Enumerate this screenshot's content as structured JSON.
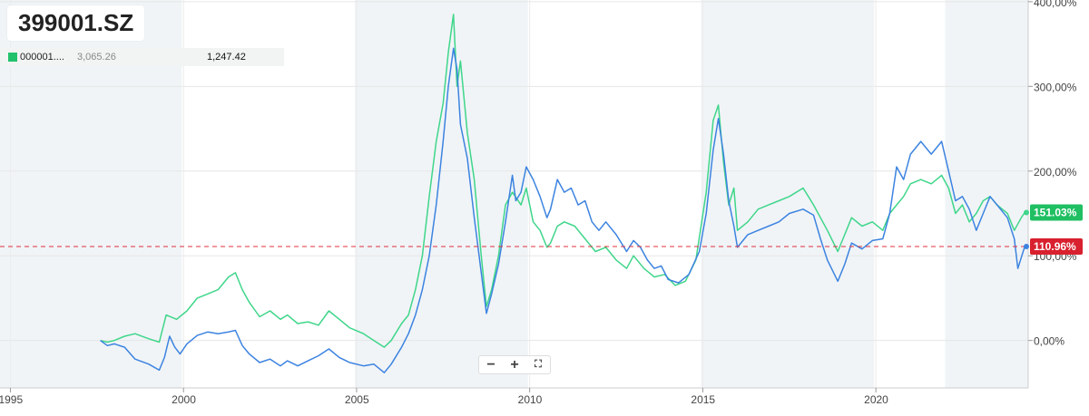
{
  "header": {
    "title": "399001.SZ"
  },
  "legend": {
    "name": "000001",
    "dots": "....",
    "value_1": "3,065.26",
    "value_2": "1,247.42",
    "color": "#22c16c"
  },
  "zoom_controls": {
    "minus": "−",
    "plus": "+",
    "fit": "⛶"
  },
  "colors": {
    "blue": "#3c83e0",
    "green": "#3fd68a",
    "dashed": "#e0313b",
    "band": "#f0f4f7"
  },
  "chart_data": {
    "type": "line",
    "x_axis": {
      "range": [
        1994.7,
        2024.4
      ],
      "ticks": [
        1995,
        2000,
        2005,
        2010,
        2015,
        2020
      ]
    },
    "y_axis": {
      "range": [
        -56,
        402
      ],
      "ticks": [
        0,
        100,
        200,
        300,
        400
      ],
      "tick_labels": [
        "0,00%",
        "100,00%",
        "200,00%",
        "300,00%",
        "400,00%"
      ]
    },
    "shaded_periods": [
      [
        1994.7,
        1999.95
      ],
      [
        2004.95,
        2009.95
      ],
      [
        2014.95,
        2019.95
      ],
      [
        2022.0,
        2024.4
      ]
    ],
    "reference_line": {
      "value": 110.96,
      "label": "110.96%"
    },
    "end_labels": [
      {
        "series": "green",
        "value": 151.03,
        "label": "151.03%"
      },
      {
        "series": "blue",
        "value": 110.96,
        "label": "110.96%"
      }
    ],
    "series": [
      {
        "key": "blue",
        "points": [
          [
            1997.6,
            0
          ],
          [
            1997.8,
            -6
          ],
          [
            1998.0,
            -4
          ],
          [
            1998.3,
            -8
          ],
          [
            1998.6,
            -22
          ],
          [
            1999.0,
            -28
          ],
          [
            1999.3,
            -35
          ],
          [
            1999.45,
            -20
          ],
          [
            1999.6,
            5
          ],
          [
            1999.75,
            -8
          ],
          [
            1999.9,
            -16
          ],
          [
            2000.1,
            -4
          ],
          [
            2000.4,
            6
          ],
          [
            2000.7,
            10
          ],
          [
            2001.0,
            8
          ],
          [
            2001.3,
            10
          ],
          [
            2001.5,
            12
          ],
          [
            2001.7,
            -6
          ],
          [
            2001.9,
            -16
          ],
          [
            2002.2,
            -26
          ],
          [
            2002.5,
            -22
          ],
          [
            2002.8,
            -30
          ],
          [
            2003.0,
            -24
          ],
          [
            2003.3,
            -30
          ],
          [
            2003.6,
            -24
          ],
          [
            2003.9,
            -18
          ],
          [
            2004.2,
            -10
          ],
          [
            2004.5,
            -20
          ],
          [
            2004.8,
            -26
          ],
          [
            2005.2,
            -30
          ],
          [
            2005.5,
            -28
          ],
          [
            2005.8,
            -38
          ],
          [
            2006.0,
            -28
          ],
          [
            2006.3,
            -8
          ],
          [
            2006.5,
            8
          ],
          [
            2006.7,
            30
          ],
          [
            2006.9,
            60
          ],
          [
            2007.1,
            100
          ],
          [
            2007.3,
            160
          ],
          [
            2007.5,
            235
          ],
          [
            2007.65,
            300
          ],
          [
            2007.8,
            345
          ],
          [
            2007.9,
            320
          ],
          [
            2008.0,
            255
          ],
          [
            2008.2,
            215
          ],
          [
            2008.4,
            145
          ],
          [
            2008.6,
            80
          ],
          [
            2008.75,
            32
          ],
          [
            2008.9,
            55
          ],
          [
            2009.1,
            90
          ],
          [
            2009.3,
            140
          ],
          [
            2009.5,
            195
          ],
          [
            2009.6,
            165
          ],
          [
            2009.75,
            175
          ],
          [
            2009.9,
            205
          ],
          [
            2010.1,
            190
          ],
          [
            2010.3,
            170
          ],
          [
            2010.5,
            145
          ],
          [
            2010.6,
            155
          ],
          [
            2010.8,
            190
          ],
          [
            2011.0,
            175
          ],
          [
            2011.2,
            180
          ],
          [
            2011.4,
            160
          ],
          [
            2011.6,
            165
          ],
          [
            2011.8,
            140
          ],
          [
            2012.0,
            130
          ],
          [
            2012.2,
            140
          ],
          [
            2012.5,
            125
          ],
          [
            2012.8,
            105
          ],
          [
            2013.0,
            118
          ],
          [
            2013.2,
            110
          ],
          [
            2013.4,
            95
          ],
          [
            2013.6,
            85
          ],
          [
            2013.8,
            88
          ],
          [
            2014.0,
            72
          ],
          [
            2014.3,
            68
          ],
          [
            2014.6,
            78
          ],
          [
            2014.9,
            105
          ],
          [
            2015.1,
            150
          ],
          [
            2015.3,
            225
          ],
          [
            2015.45,
            262
          ],
          [
            2015.6,
            220
          ],
          [
            2015.75,
            165
          ],
          [
            2015.9,
            135
          ],
          [
            2016.0,
            110
          ],
          [
            2016.3,
            125
          ],
          [
            2016.6,
            130
          ],
          [
            2016.9,
            135
          ],
          [
            2017.2,
            140
          ],
          [
            2017.5,
            150
          ],
          [
            2017.9,
            155
          ],
          [
            2018.2,
            148
          ],
          [
            2018.4,
            120
          ],
          [
            2018.6,
            95
          ],
          [
            2018.9,
            70
          ],
          [
            2019.1,
            90
          ],
          [
            2019.3,
            115
          ],
          [
            2019.6,
            108
          ],
          [
            2019.9,
            118
          ],
          [
            2020.2,
            120
          ],
          [
            2020.4,
            150
          ],
          [
            2020.6,
            205
          ],
          [
            2020.8,
            190
          ],
          [
            2021.0,
            220
          ],
          [
            2021.3,
            235
          ],
          [
            2021.6,
            220
          ],
          [
            2021.9,
            235
          ],
          [
            2022.1,
            200
          ],
          [
            2022.3,
            165
          ],
          [
            2022.5,
            170
          ],
          [
            2022.7,
            155
          ],
          [
            2022.9,
            130
          ],
          [
            2023.1,
            150
          ],
          [
            2023.3,
            170
          ],
          [
            2023.5,
            160
          ],
          [
            2023.8,
            145
          ],
          [
            2024.0,
            120
          ],
          [
            2024.1,
            85
          ],
          [
            2024.3,
            110.96
          ]
        ]
      },
      {
        "key": "green",
        "points": [
          [
            1997.6,
            0
          ],
          [
            1997.8,
            -2
          ],
          [
            1998.0,
            0
          ],
          [
            1998.3,
            5
          ],
          [
            1998.6,
            8
          ],
          [
            1999.0,
            2
          ],
          [
            1999.3,
            -2
          ],
          [
            1999.5,
            30
          ],
          [
            1999.8,
            25
          ],
          [
            2000.1,
            35
          ],
          [
            2000.4,
            50
          ],
          [
            2000.7,
            55
          ],
          [
            2001.0,
            60
          ],
          [
            2001.3,
            75
          ],
          [
            2001.5,
            80
          ],
          [
            2001.7,
            60
          ],
          [
            2001.9,
            45
          ],
          [
            2002.2,
            28
          ],
          [
            2002.5,
            35
          ],
          [
            2002.8,
            25
          ],
          [
            2003.0,
            30
          ],
          [
            2003.3,
            20
          ],
          [
            2003.6,
            22
          ],
          [
            2003.9,
            18
          ],
          [
            2004.2,
            35
          ],
          [
            2004.5,
            25
          ],
          [
            2004.8,
            15
          ],
          [
            2005.2,
            8
          ],
          [
            2005.5,
            0
          ],
          [
            2005.8,
            -8
          ],
          [
            2006.0,
            0
          ],
          [
            2006.3,
            20
          ],
          [
            2006.5,
            30
          ],
          [
            2006.7,
            60
          ],
          [
            2006.9,
            100
          ],
          [
            2007.1,
            170
          ],
          [
            2007.3,
            235
          ],
          [
            2007.5,
            280
          ],
          [
            2007.65,
            340
          ],
          [
            2007.8,
            385
          ],
          [
            2007.9,
            300
          ],
          [
            2008.0,
            330
          ],
          [
            2008.2,
            245
          ],
          [
            2008.4,
            190
          ],
          [
            2008.6,
            100
          ],
          [
            2008.75,
            40
          ],
          [
            2008.9,
            60
          ],
          [
            2009.1,
            100
          ],
          [
            2009.3,
            160
          ],
          [
            2009.5,
            175
          ],
          [
            2009.75,
            160
          ],
          [
            2009.9,
            180
          ],
          [
            2010.1,
            140
          ],
          [
            2010.3,
            130
          ],
          [
            2010.5,
            110
          ],
          [
            2010.6,
            115
          ],
          [
            2010.8,
            135
          ],
          [
            2011.0,
            140
          ],
          [
            2011.3,
            135
          ],
          [
            2011.6,
            120
          ],
          [
            2011.9,
            105
          ],
          [
            2012.2,
            110
          ],
          [
            2012.5,
            95
          ],
          [
            2012.8,
            85
          ],
          [
            2013.0,
            100
          ],
          [
            2013.3,
            85
          ],
          [
            2013.6,
            75
          ],
          [
            2013.9,
            78
          ],
          [
            2014.2,
            65
          ],
          [
            2014.5,
            70
          ],
          [
            2014.8,
            95
          ],
          [
            2015.1,
            175
          ],
          [
            2015.3,
            260
          ],
          [
            2015.45,
            278
          ],
          [
            2015.6,
            210
          ],
          [
            2015.75,
            160
          ],
          [
            2015.9,
            180
          ],
          [
            2016.0,
            130
          ],
          [
            2016.3,
            140
          ],
          [
            2016.6,
            155
          ],
          [
            2016.9,
            160
          ],
          [
            2017.2,
            165
          ],
          [
            2017.5,
            170
          ],
          [
            2017.9,
            180
          ],
          [
            2018.2,
            160
          ],
          [
            2018.4,
            145
          ],
          [
            2018.6,
            130
          ],
          [
            2018.9,
            105
          ],
          [
            2019.1,
            125
          ],
          [
            2019.3,
            145
          ],
          [
            2019.6,
            135
          ],
          [
            2019.9,
            140
          ],
          [
            2020.2,
            130
          ],
          [
            2020.4,
            150
          ],
          [
            2020.6,
            160
          ],
          [
            2020.8,
            170
          ],
          [
            2021.0,
            185
          ],
          [
            2021.3,
            190
          ],
          [
            2021.6,
            185
          ],
          [
            2021.9,
            195
          ],
          [
            2022.1,
            180
          ],
          [
            2022.3,
            150
          ],
          [
            2022.5,
            160
          ],
          [
            2022.7,
            140
          ],
          [
            2022.9,
            150
          ],
          [
            2023.1,
            165
          ],
          [
            2023.3,
            170
          ],
          [
            2023.5,
            160
          ],
          [
            2023.8,
            150
          ],
          [
            2024.0,
            130
          ],
          [
            2024.2,
            145
          ],
          [
            2024.3,
            151.03
          ]
        ]
      }
    ]
  }
}
